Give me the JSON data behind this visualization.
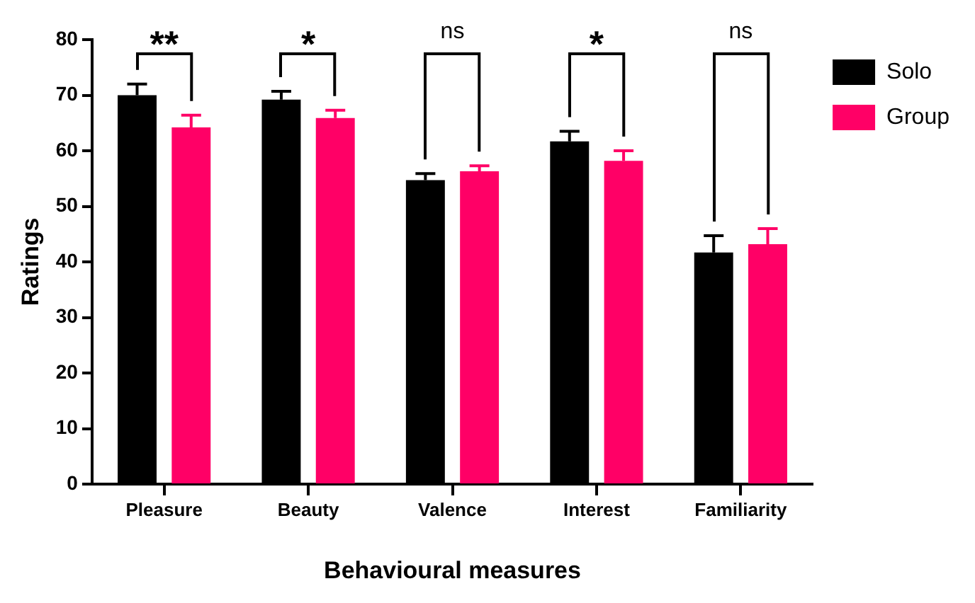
{
  "chart_data": {
    "type": "bar",
    "xlabel": "Behavioural measures",
    "ylabel": "Ratings",
    "categories": [
      "Pleasure",
      "Beauty",
      "Valence",
      "Interest",
      "Familiarity"
    ],
    "series": [
      {
        "name": "Solo",
        "color": "#000000",
        "values": [
          70,
          69.2,
          54.7,
          61.7,
          41.7
        ],
        "errors": [
          [
            70,
            72
          ],
          [
            69.2,
            70.7
          ],
          [
            54.7,
            55.9
          ],
          [
            61.7,
            63.5
          ],
          [
            41.7,
            44.7
          ]
        ]
      },
      {
        "name": "Group",
        "color": "#ff0066",
        "values": [
          64.2,
          65.9,
          56.3,
          58.2,
          43.2
        ],
        "errors": [
          [
            64.2,
            66.4
          ],
          [
            65.9,
            67.3
          ],
          [
            56.3,
            57.3
          ],
          [
            58.2,
            60
          ],
          [
            43.2,
            46
          ]
        ]
      }
    ],
    "ylim": [
      0,
      80
    ],
    "yticks": [
      0,
      10,
      20,
      30,
      40,
      50,
      60,
      70,
      80
    ],
    "grid": false,
    "legend": "top right",
    "annotations": [
      "**",
      "*",
      "ns",
      "*",
      "ns"
    ]
  }
}
